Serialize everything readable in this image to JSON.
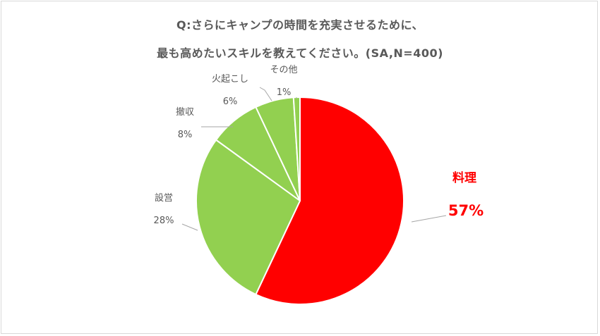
{
  "title": {
    "line1": "Q:さらにキャンプの時間を充実させるために、",
    "line2": "最も高めたいスキルを教えてください。(SA,N=400)"
  },
  "colors": {
    "highlight": "#ff0000",
    "others": "#92d050",
    "leader": "#a6a6a6",
    "text": "#595959"
  },
  "chart_data": {
    "type": "pie",
    "title": "Q:さらにキャンプの時間を充実させるために、最も高めたいスキルを教えてください。(SA,N=400)",
    "slices": [
      {
        "label": "料理",
        "value": 57,
        "display": "57%",
        "highlight": true
      },
      {
        "label": "設営",
        "value": 28,
        "display": "28%",
        "highlight": false
      },
      {
        "label": "撤収",
        "value": 8,
        "display": "8%",
        "highlight": false
      },
      {
        "label": "火起こし",
        "value": 6,
        "display": "6%",
        "highlight": false
      },
      {
        "label": "その他",
        "value": 1,
        "display": "1%",
        "highlight": false
      }
    ]
  }
}
